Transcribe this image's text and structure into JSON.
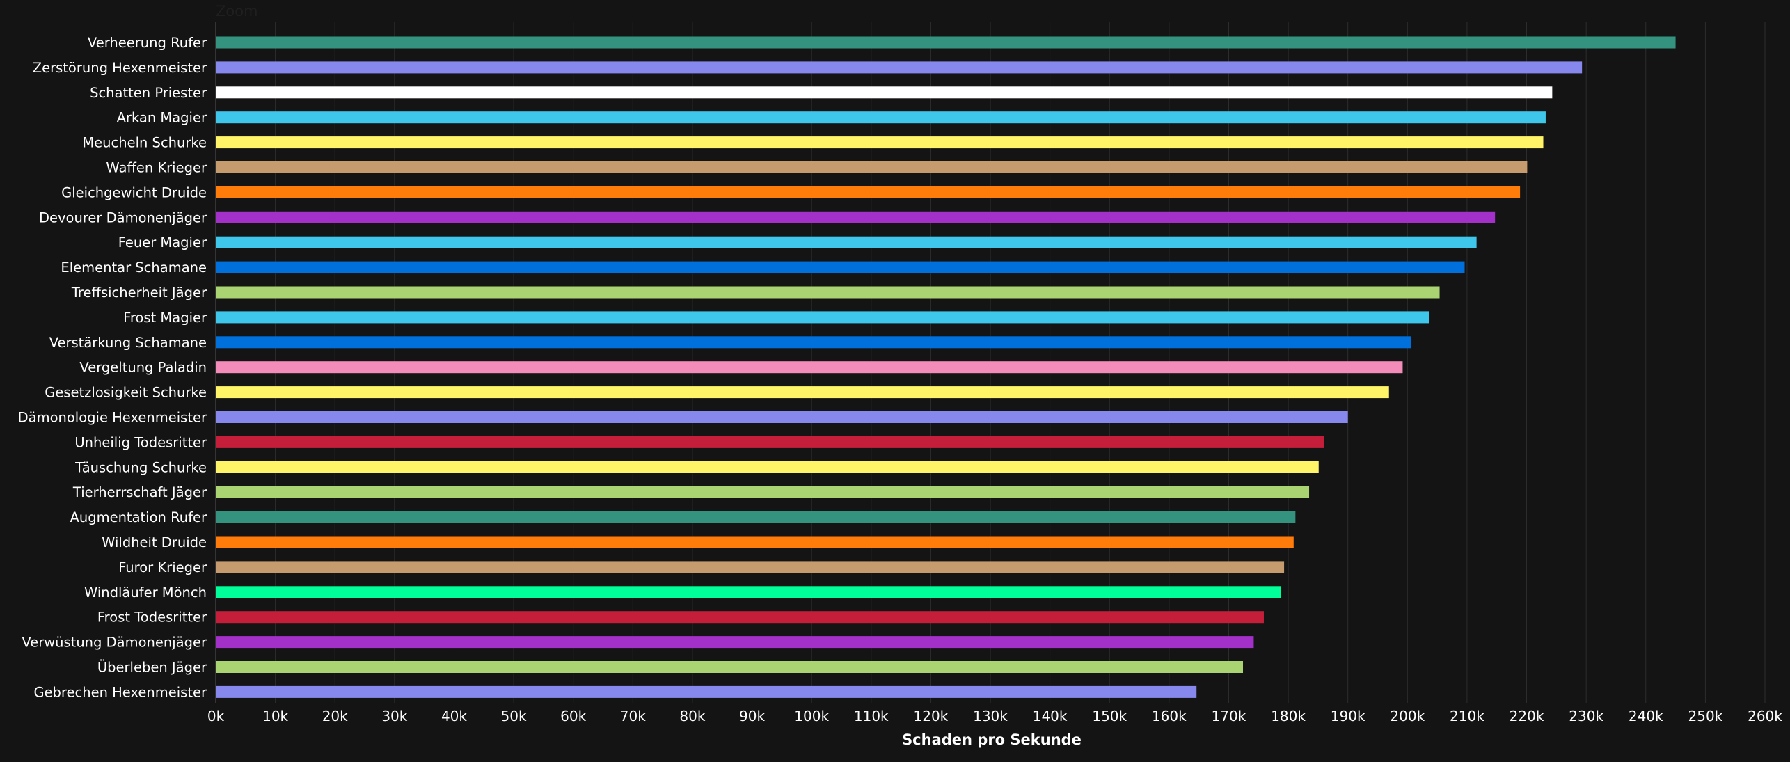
{
  "zoom_label": "Zoom",
  "chart_data": {
    "type": "bar",
    "orientation": "horizontal",
    "title": "",
    "xlabel": "Schaden pro Sekunde",
    "ylabel": "",
    "xlim": [
      0,
      260000
    ],
    "x_tick_step": 10000,
    "x_tick_labels": [
      "0k",
      "10k",
      "20k",
      "30k",
      "40k",
      "50k",
      "60k",
      "70k",
      "80k",
      "90k",
      "100k",
      "110k",
      "120k",
      "130k",
      "140k",
      "150k",
      "160k",
      "170k",
      "180k",
      "190k",
      "200k",
      "210k",
      "220k",
      "230k",
      "240k",
      "250k",
      "260k"
    ],
    "grid": "vertical",
    "categories": [
      "Verheerung Rufer",
      "Zerstörung Hexenmeister",
      "Schatten Priester",
      "Arkan Magier",
      "Meucheln Schurke",
      "Waffen Krieger",
      "Gleichgewicht Druide",
      "Devourer Dämonenjäger",
      "Feuer Magier",
      "Elementar Schamane",
      "Treffsicherheit Jäger",
      "Frost Magier",
      "Verstärkung Schamane",
      "Vergeltung Paladin",
      "Gesetzlosigkeit Schurke",
      "Dämonologie Hexenmeister",
      "Unheilig Todesritter",
      "Täuschung Schurke",
      "Tierherrschaft Jäger",
      "Augmentation Rufer",
      "Wildheit Druide",
      "Furor Krieger",
      "Windläufer Mönch",
      "Frost Todesritter",
      "Verwüstung Dämonenjäger",
      "Überleben Jäger",
      "Gebrechen Hexenmeister"
    ],
    "values": [
      245000,
      229300,
      224300,
      223200,
      222800,
      220100,
      218900,
      214700,
      211600,
      209600,
      205400,
      203600,
      200600,
      199200,
      196900,
      190000,
      186000,
      185100,
      183500,
      181200,
      180900,
      179300,
      178800,
      175900,
      174200,
      172400,
      164600
    ],
    "colors": [
      "#33937f",
      "#8788ee",
      "#ffffff",
      "#3fc7eb",
      "#fff468",
      "#c69b6d",
      "#ff7c0a",
      "#a330c9",
      "#3fc7eb",
      "#0070dd",
      "#aad372",
      "#3fc7eb",
      "#0070dd",
      "#f48cba",
      "#fff468",
      "#8788ee",
      "#c41e3a",
      "#fff468",
      "#aad372",
      "#33937f",
      "#ff7c0a",
      "#c69b6d",
      "#00ff98",
      "#c41e3a",
      "#a330c9",
      "#aad372",
      "#8788ee"
    ]
  }
}
